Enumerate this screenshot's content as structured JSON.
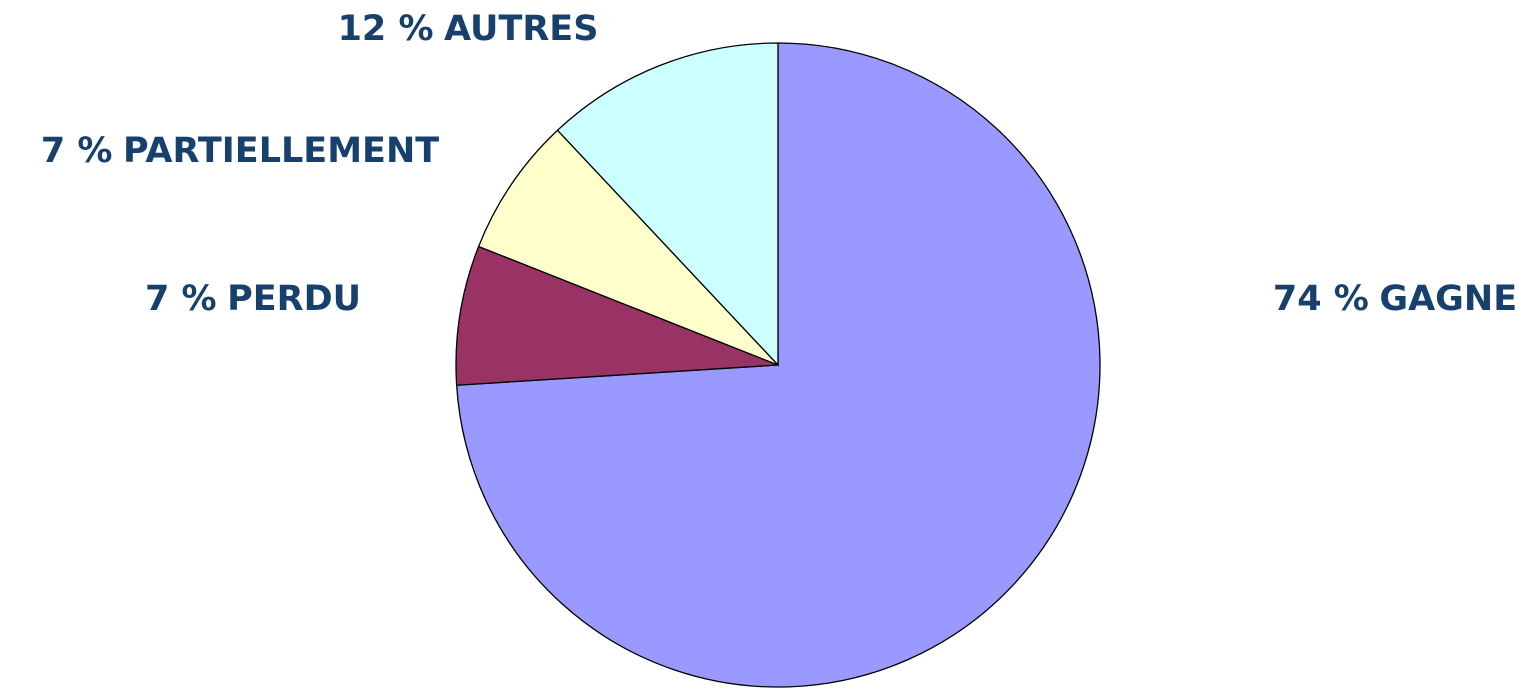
{
  "chart_data": {
    "type": "pie",
    "categories": [
      "GAGNE",
      "PERDU",
      "PARTIELLEMENT",
      "AUTRES"
    ],
    "values": [
      74,
      7,
      7,
      12
    ],
    "value_labels": [
      "74 %",
      "7 %",
      "7 %",
      "12 %"
    ],
    "colors": [
      "#9999ff",
      "#993366",
      "#ffffcc",
      "#ccffff"
    ]
  }
}
